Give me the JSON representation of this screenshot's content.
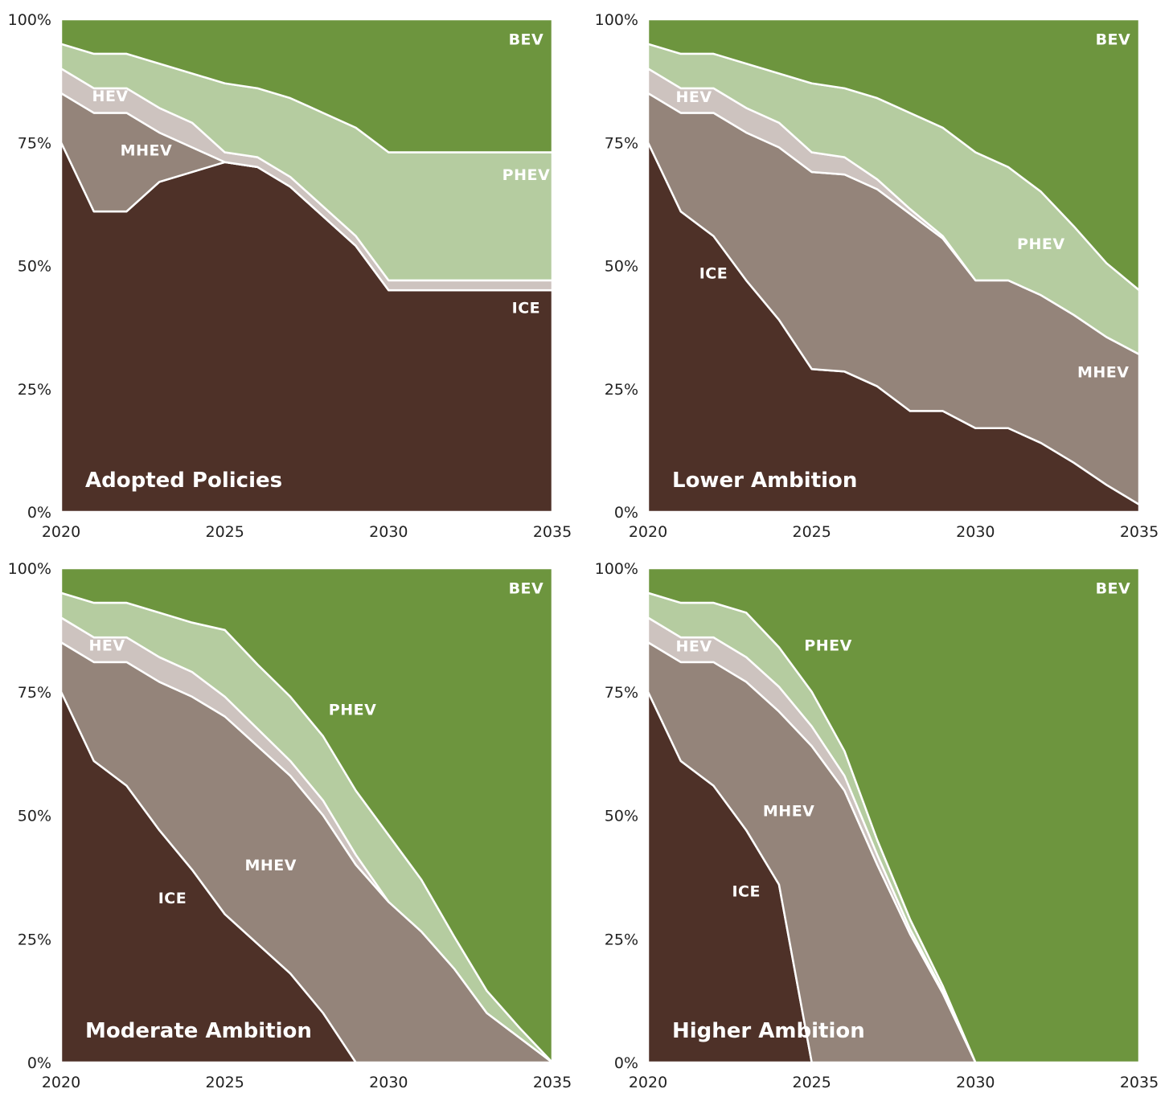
{
  "colors": {
    "ICE": "#4e3128",
    "MHEV": "#94847a",
    "HEV": "#cdc3bf",
    "PHEV": "#b5cca0",
    "BEV": "#6d953e"
  },
  "chart_data": [
    {
      "type": "area",
      "stacked": true,
      "title": "Adopted Policies",
      "x": [
        2020,
        2021,
        2022,
        2023,
        2024,
        2025,
        2026,
        2027,
        2028,
        2029,
        2030,
        2031,
        2032,
        2033,
        2034,
        2035
      ],
      "xticks": [
        "2020",
        "2025",
        "2030",
        "2035"
      ],
      "xtick_values": [
        2020,
        2025,
        2030,
        2035
      ],
      "yticks": [
        "0%",
        "25%",
        "50%",
        "75%",
        "100%"
      ],
      "ylim": [
        0,
        100
      ],
      "series": [
        {
          "name": "ICE",
          "values": [
            75,
            61,
            61,
            67,
            69,
            71,
            70,
            66,
            60,
            54,
            45,
            45,
            45,
            45,
            45,
            45
          ]
        },
        {
          "name": "MHEV",
          "values": [
            10,
            20,
            20,
            10,
            5,
            0,
            0,
            0,
            0,
            0,
            0,
            0,
            0,
            0,
            0,
            0
          ]
        },
        {
          "name": "HEV",
          "values": [
            5,
            5,
            5,
            5,
            5,
            2,
            2,
            2,
            2,
            2,
            2,
            2,
            2,
            2,
            2,
            2
          ]
        },
        {
          "name": "PHEV",
          "values": [
            5,
            7,
            7,
            9,
            10,
            14,
            14,
            16,
            19,
            22,
            26,
            26,
            26,
            26,
            26,
            26
          ]
        },
        {
          "name": "BEV",
          "values": [
            5,
            7,
            7,
            9,
            11,
            13,
            14,
            16,
            19,
            22,
            27,
            27,
            27,
            27,
            27,
            27
          ]
        }
      ],
      "labels": [
        {
          "text": "BEV",
          "series": "BEV",
          "x": 2034.2,
          "y": 96
        },
        {
          "text": "HEV",
          "series": "HEV",
          "x": 2021.5,
          "y": 84.5
        },
        {
          "text": "MHEV",
          "series": "MHEV",
          "x": 2022.6,
          "y": 73.5
        },
        {
          "text": "PHEV",
          "series": "PHEV",
          "x": 2034.2,
          "y": 68.5
        },
        {
          "text": "ICE",
          "series": "ICE",
          "x": 2034.2,
          "y": 41.5
        }
      ]
    },
    {
      "type": "area",
      "stacked": true,
      "title": "Lower Ambition",
      "x": [
        2020,
        2021,
        2022,
        2023,
        2024,
        2025,
        2026,
        2027,
        2028,
        2029,
        2030,
        2031,
        2032,
        2033,
        2034,
        2035
      ],
      "xticks": [
        "2020",
        "2025",
        "2030",
        "2035"
      ],
      "xtick_values": [
        2020,
        2025,
        2030,
        2035
      ],
      "yticks": [
        "0%",
        "25%",
        "50%",
        "75%",
        "100%"
      ],
      "ylim": [
        0,
        100
      ],
      "series": [
        {
          "name": "ICE",
          "values": [
            75,
            61,
            56,
            47,
            39,
            29,
            28.5,
            25.5,
            20.5,
            20.5,
            17,
            17,
            14,
            10,
            5.5,
            1.5
          ]
        },
        {
          "name": "MHEV",
          "values": [
            10,
            20,
            25,
            30,
            35,
            40,
            40,
            40,
            40,
            35,
            30,
            30,
            30,
            30,
            30,
            30.5
          ]
        },
        {
          "name": "HEV",
          "values": [
            5,
            5,
            5,
            5,
            5,
            4,
            3.5,
            2,
            1,
            0.5,
            0,
            0,
            0,
            0,
            0,
            0
          ]
        },
        {
          "name": "PHEV",
          "values": [
            5,
            7,
            7,
            9,
            10,
            14,
            14,
            16.5,
            19.5,
            22,
            26,
            23,
            21,
            18,
            15,
            13
          ]
        },
        {
          "name": "BEV",
          "values": [
            5,
            7,
            7,
            9,
            11,
            13,
            14,
            16,
            19,
            22,
            27,
            30,
            35,
            42,
            49.5,
            55
          ]
        }
      ],
      "labels": [
        {
          "text": "BEV",
          "series": "BEV",
          "x": 2034.2,
          "y": 96
        },
        {
          "text": "HEV",
          "series": "HEV",
          "x": 2021.4,
          "y": 84.3
        },
        {
          "text": "PHEV",
          "series": "PHEV",
          "x": 2032.0,
          "y": 54.5
        },
        {
          "text": "ICE",
          "series": "ICE",
          "x": 2022.0,
          "y": 48.5
        },
        {
          "text": "MHEV",
          "series": "MHEV",
          "x": 2033.9,
          "y": 28.5
        }
      ]
    },
    {
      "type": "area",
      "stacked": true,
      "title": "Moderate Ambition",
      "x": [
        2020,
        2021,
        2022,
        2023,
        2024,
        2025,
        2026,
        2027,
        2028,
        2029,
        2030,
        2031,
        2032,
        2033,
        2034,
        2035
      ],
      "xticks": [
        "2020",
        "2025",
        "2030",
        "2035"
      ],
      "xtick_values": [
        2020,
        2025,
        2030,
        2035
      ],
      "yticks": [
        "0%",
        "25%",
        "50%",
        "75%",
        "100%"
      ],
      "ylim": [
        0,
        100
      ],
      "series": [
        {
          "name": "ICE",
          "values": [
            75,
            61,
            56,
            47,
            39,
            30,
            24,
            18,
            10,
            0,
            0,
            0,
            0,
            0,
            0,
            0
          ]
        },
        {
          "name": "MHEV",
          "values": [
            10,
            20,
            25,
            30,
            35,
            40,
            40,
            40,
            40,
            40,
            32.5,
            26.5,
            19,
            10,
            5,
            0
          ]
        },
        {
          "name": "HEV",
          "values": [
            5,
            5,
            5,
            5,
            5,
            4,
            3.5,
            3,
            3,
            2,
            0,
            0,
            0,
            0,
            0,
            0
          ]
        },
        {
          "name": "PHEV",
          "values": [
            5,
            7,
            7,
            9,
            10,
            13.5,
            13,
            13,
            13,
            13,
            13.5,
            10.5,
            6.5,
            4.5,
            2,
            0
          ]
        },
        {
          "name": "BEV",
          "values": [
            5,
            7,
            7,
            9,
            11,
            12.5,
            19.5,
            26,
            34,
            45,
            54,
            63,
            74.5,
            85.5,
            93,
            100
          ]
        }
      ],
      "labels": [
        {
          "text": "BEV",
          "series": "BEV",
          "x": 2034.2,
          "y": 96
        },
        {
          "text": "HEV",
          "series": "HEV",
          "x": 2021.4,
          "y": 84.5
        },
        {
          "text": "PHEV",
          "series": "PHEV",
          "x": 2028.9,
          "y": 71.5
        },
        {
          "text": "MHEV",
          "series": "MHEV",
          "x": 2026.4,
          "y": 40
        },
        {
          "text": "ICE",
          "series": "ICE",
          "x": 2023.4,
          "y": 33.3
        }
      ]
    },
    {
      "type": "area",
      "stacked": true,
      "title": "Higher Ambition",
      "x": [
        2020,
        2021,
        2022,
        2023,
        2024,
        2025,
        2026,
        2027,
        2028,
        2029,
        2030,
        2031,
        2032,
        2033,
        2034,
        2035
      ],
      "xticks": [
        "2020",
        "2025",
        "2030",
        "2035"
      ],
      "xtick_values": [
        2020,
        2025,
        2030,
        2035
      ],
      "yticks": [
        "0%",
        "25%",
        "50%",
        "75%",
        "100%"
      ],
      "ylim": [
        0,
        100
      ],
      "series": [
        {
          "name": "ICE",
          "values": [
            75,
            61,
            56,
            47,
            36,
            0,
            0,
            0,
            0,
            0,
            0,
            0,
            0,
            0,
            0,
            0
          ]
        },
        {
          "name": "MHEV",
          "values": [
            10,
            20,
            25,
            30,
            35,
            64,
            55,
            40,
            26,
            14,
            0,
            0,
            0,
            0,
            0,
            0
          ]
        },
        {
          "name": "HEV",
          "values": [
            5,
            5,
            5,
            5,
            5,
            4,
            3,
            2,
            1,
            0.5,
            0,
            0,
            0,
            0,
            0,
            0
          ]
        },
        {
          "name": "PHEV",
          "values": [
            5,
            7,
            7,
            9,
            8,
            7,
            5,
            3,
            2,
            1,
            0,
            0,
            0,
            0,
            0,
            0
          ]
        },
        {
          "name": "BEV",
          "values": [
            5,
            7,
            7,
            9,
            16,
            25,
            37,
            55,
            71,
            84.5,
            100,
            100,
            100,
            100,
            100,
            100
          ]
        }
      ],
      "labels": [
        {
          "text": "BEV",
          "series": "BEV",
          "x": 2034.2,
          "y": 96
        },
        {
          "text": "HEV",
          "series": "HEV",
          "x": 2021.4,
          "y": 84.3
        },
        {
          "text": "PHEV",
          "series": "PHEV",
          "x": 2025.5,
          "y": 84.5
        },
        {
          "text": "MHEV",
          "series": "MHEV",
          "x": 2024.3,
          "y": 51
        },
        {
          "text": "ICE",
          "series": "ICE",
          "x": 2023.0,
          "y": 34.7
        }
      ]
    }
  ]
}
